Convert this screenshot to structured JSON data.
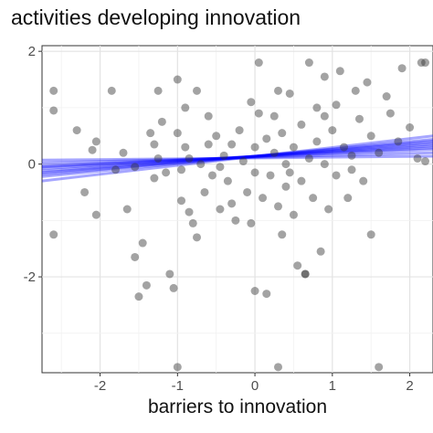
{
  "chart_data": {
    "type": "scatter",
    "title": "activities developing innovation",
    "xlabel": "barriers to innovation",
    "ylabel": "",
    "xlim": [
      -2.75,
      2.3
    ],
    "ylim": [
      -3.7,
      2.1
    ],
    "x_ticks": [
      -2,
      -1,
      0,
      1,
      2
    ],
    "y_ticks": [
      2,
      0,
      -2
    ],
    "grid": true,
    "point_color": "#333333",
    "fit_color": "#0000ff",
    "fit_lines": [
      {
        "x": [
          -2.75,
          2.3
        ],
        "y": [
          -0.08,
          0.32
        ]
      },
      {
        "x": [
          -2.75,
          2.3
        ],
        "y": [
          -0.15,
          0.38
        ]
      },
      {
        "x": [
          -2.75,
          2.3
        ],
        "y": [
          -0.03,
          0.26
        ]
      },
      {
        "x": [
          -2.75,
          2.3
        ],
        "y": [
          -0.22,
          0.44
        ]
      },
      {
        "x": [
          -2.75,
          2.3
        ],
        "y": [
          0.02,
          0.2
        ]
      },
      {
        "x": [
          -2.75,
          2.3
        ],
        "y": [
          -0.3,
          0.5
        ]
      },
      {
        "x": [
          -2.75,
          2.3
        ],
        "y": [
          0.07,
          0.14
        ]
      },
      {
        "x": [
          -2.75,
          2.3
        ],
        "y": [
          -0.12,
          0.35
        ]
      },
      {
        "x": [
          -2.75,
          2.3
        ],
        "y": [
          -0.05,
          0.29
        ]
      },
      {
        "x": [
          -2.75,
          2.3
        ],
        "y": [
          -0.18,
          0.41
        ]
      }
    ],
    "points": [
      {
        "x": -2.6,
        "y": 1.3
      },
      {
        "x": -2.6,
        "y": 0.95
      },
      {
        "x": -2.6,
        "y": -1.25
      },
      {
        "x": -2.3,
        "y": 0.6
      },
      {
        "x": -2.2,
        "y": -0.5
      },
      {
        "x": -2.1,
        "y": 0.25
      },
      {
        "x": -2.05,
        "y": 0.4
      },
      {
        "x": -2.05,
        "y": -0.9
      },
      {
        "x": -1.85,
        "y": 1.3
      },
      {
        "x": -1.8,
        "y": -0.1
      },
      {
        "x": -1.65,
        "y": -0.8
      },
      {
        "x": -1.55,
        "y": -0.05
      },
      {
        "x": -1.55,
        "y": -1.65
      },
      {
        "x": -1.5,
        "y": -2.35
      },
      {
        "x": -1.45,
        "y": -1.4
      },
      {
        "x": -1.4,
        "y": -2.15
      },
      {
        "x": -1.35,
        "y": 0.55
      },
      {
        "x": -1.3,
        "y": 0.35
      },
      {
        "x": -1.25,
        "y": 0.1
      },
      {
        "x": -1.3,
        "y": -0.25
      },
      {
        "x": -1.25,
        "y": 1.3
      },
      {
        "x": -1.2,
        "y": 0.75
      },
      {
        "x": -1.15,
        "y": -0.15
      },
      {
        "x": -1.1,
        "y": -1.95
      },
      {
        "x": -1.05,
        "y": -2.2
      },
      {
        "x": -1.0,
        "y": 1.5
      },
      {
        "x": -1.0,
        "y": 0.55
      },
      {
        "x": -0.95,
        "y": -0.65
      },
      {
        "x": -0.95,
        "y": -0.1
      },
      {
        "x": -0.9,
        "y": 1.0
      },
      {
        "x": -0.9,
        "y": 0.3
      },
      {
        "x": -0.85,
        "y": 0.1
      },
      {
        "x": -0.85,
        "y": -0.85
      },
      {
        "x": -0.8,
        "y": -1.05
      },
      {
        "x": -0.75,
        "y": -1.3
      },
      {
        "x": -0.75,
        "y": 1.3
      },
      {
        "x": -0.7,
        "y": 0.0
      },
      {
        "x": -0.65,
        "y": -0.5
      },
      {
        "x": -0.6,
        "y": 0.85
      },
      {
        "x": -0.55,
        "y": -0.2
      },
      {
        "x": -0.5,
        "y": 0.5
      },
      {
        "x": -0.45,
        "y": -0.05
      },
      {
        "x": -0.45,
        "y": -0.8
      },
      {
        "x": -0.4,
        "y": 0.15
      },
      {
        "x": -0.35,
        "y": -0.3
      },
      {
        "x": -0.3,
        "y": -0.7
      },
      {
        "x": -0.3,
        "y": 0.35
      },
      {
        "x": -0.25,
        "y": -1.0
      },
      {
        "x": -0.2,
        "y": 0.6
      },
      {
        "x": -0.15,
        "y": 0.05
      },
      {
        "x": -0.1,
        "y": -0.5
      },
      {
        "x": -0.05,
        "y": 1.1
      },
      {
        "x": 0.0,
        "y": 0.3
      },
      {
        "x": 0.0,
        "y": -0.15
      },
      {
        "x": 0.0,
        "y": -2.25
      },
      {
        "x": 0.05,
        "y": 1.8
      },
      {
        "x": 0.05,
        "y": 0.9
      },
      {
        "x": 0.1,
        "y": -0.6
      },
      {
        "x": 0.15,
        "y": 0.45
      },
      {
        "x": 0.15,
        "y": -2.3
      },
      {
        "x": 0.2,
        "y": -0.2
      },
      {
        "x": 0.25,
        "y": 0.2
      },
      {
        "x": 0.3,
        "y": -0.75
      },
      {
        "x": 0.3,
        "y": 1.3
      },
      {
        "x": 0.35,
        "y": 0.55
      },
      {
        "x": 0.35,
        "y": -1.25
      },
      {
        "x": 0.4,
        "y": -0.4
      },
      {
        "x": 0.4,
        "y": 0.0
      },
      {
        "x": 0.45,
        "y": 1.25
      },
      {
        "x": 0.5,
        "y": 0.3
      },
      {
        "x": 0.5,
        "y": -0.9
      },
      {
        "x": 0.55,
        "y": -1.8
      },
      {
        "x": 0.6,
        "y": 0.7
      },
      {
        "x": 0.6,
        "y": -0.3
      },
      {
        "x": 0.65,
        "y": -1.95
      },
      {
        "x": 0.7,
        "y": 1.8
      },
      {
        "x": 0.7,
        "y": 0.1
      },
      {
        "x": 0.75,
        "y": -0.6
      },
      {
        "x": 0.8,
        "y": 1.0
      },
      {
        "x": 0.8,
        "y": 0.4
      },
      {
        "x": 0.85,
        "y": -1.55
      },
      {
        "x": 0.9,
        "y": 1.55
      },
      {
        "x": 0.9,
        "y": 0.0
      },
      {
        "x": 0.95,
        "y": -0.8
      },
      {
        "x": 1.0,
        "y": 0.6
      },
      {
        "x": 1.05,
        "y": -0.2
      },
      {
        "x": 1.05,
        "y": 1.05
      },
      {
        "x": 1.1,
        "y": 1.65
      },
      {
        "x": 1.15,
        "y": 0.3
      },
      {
        "x": 1.2,
        "y": -0.6
      },
      {
        "x": 1.25,
        "y": 0.15
      },
      {
        "x": 1.3,
        "y": 1.3
      },
      {
        "x": 1.35,
        "y": 0.8
      },
      {
        "x": 1.4,
        "y": -0.3
      },
      {
        "x": 1.45,
        "y": 1.45
      },
      {
        "x": 1.5,
        "y": 0.5
      },
      {
        "x": 1.5,
        "y": -1.25
      },
      {
        "x": 1.6,
        "y": 0.2
      },
      {
        "x": 1.6,
        "y": -3.6
      },
      {
        "x": 1.7,
        "y": 1.2
      },
      {
        "x": 1.75,
        "y": 0.9
      },
      {
        "x": 1.85,
        "y": 0.4
      },
      {
        "x": 1.9,
        "y": 1.7
      },
      {
        "x": 2.0,
        "y": 0.65
      },
      {
        "x": 2.1,
        "y": 0.1
      },
      {
        "x": 2.15,
        "y": 1.8
      },
      {
        "x": 2.2,
        "y": 1.8
      },
      {
        "x": 2.2,
        "y": 0.05
      },
      {
        "x": -1.0,
        "y": -3.6
      },
      {
        "x": 0.3,
        "y": -3.6
      },
      {
        "x": 0.65,
        "y": -1.95
      },
      {
        "x": -0.05,
        "y": -1.05
      },
      {
        "x": 0.25,
        "y": 0.85
      },
      {
        "x": -0.6,
        "y": 0.35
      },
      {
        "x": 0.45,
        "y": -0.15
      },
      {
        "x": 1.25,
        "y": -0.1
      },
      {
        "x": -1.7,
        "y": 0.2
      },
      {
        "x": 0.9,
        "y": 0.85
      }
    ]
  }
}
